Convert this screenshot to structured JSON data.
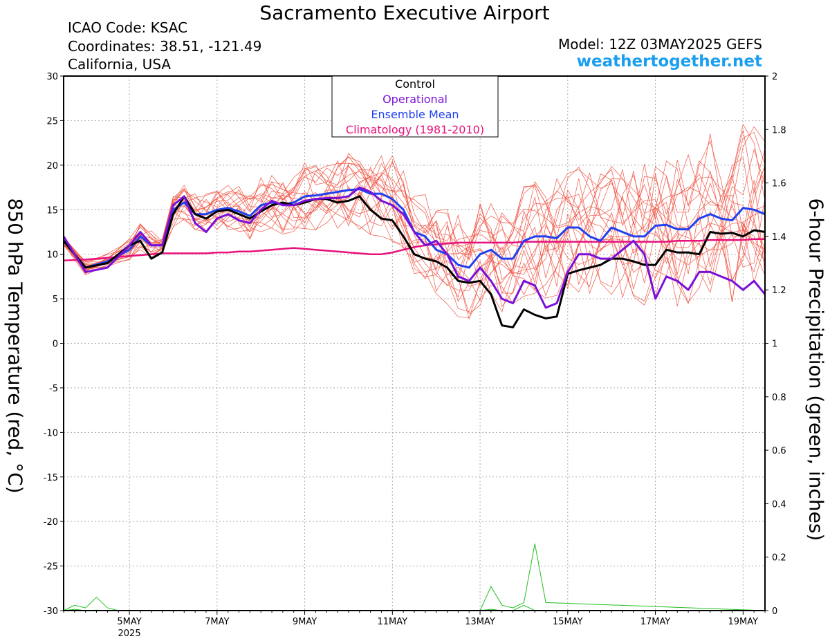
{
  "header": {
    "title": "Sacramento Executive Airport",
    "icao": "ICAO Code: KSAC",
    "coordinates": "Coordinates: 38.51, -121.49",
    "location": "California, USA",
    "model": "Model: 12Z 03MAY2025 GEFS",
    "site": "weathertogether.net"
  },
  "colors": {
    "members": "#f05040",
    "control": "#000000",
    "operational": "#7a10d8",
    "mean": "#2040f0",
    "climatology": "#e8107a",
    "precip": "#20c020",
    "site": "#1a9ef0",
    "grid": "#aaaaaa"
  },
  "chart_data": {
    "type": "line",
    "title": "Sacramento Executive Airport",
    "ylabel": "850 hPa Temperature (red, °C)",
    "y2label": "6-hour Precipitation (green, inches)",
    "ylim": [
      -30,
      30
    ],
    "y2lim": [
      0,
      2
    ],
    "yticks": [
      "30",
      "25",
      "20",
      "15",
      "10",
      "5",
      "0",
      "-5",
      "-10",
      "-15",
      "-20",
      "-25",
      "-30"
    ],
    "y2ticks": [
      "2",
      "1.8",
      "1.6",
      "1.4",
      "1.2",
      "1",
      "0.8",
      "0.6",
      "0.4",
      "0.2",
      "0"
    ],
    "xlim_days": [
      3.5,
      19.5
    ],
    "xticks": [
      {
        "label": "5MAY",
        "sub": "2025",
        "day": 5
      },
      {
        "label": "7MAY",
        "sub": "",
        "day": 7
      },
      {
        "label": "9MAY",
        "sub": "",
        "day": 9
      },
      {
        "label": "11MAY",
        "sub": "",
        "day": 11
      },
      {
        "label": "13MAY",
        "sub": "",
        "day": 13
      },
      {
        "label": "15MAY",
        "sub": "",
        "day": 15
      },
      {
        "label": "17MAY",
        "sub": "",
        "day": 17
      },
      {
        "label": "19MAY",
        "sub": "",
        "day": 19
      }
    ],
    "grid": true,
    "legend_position": "top-center",
    "legend": [
      {
        "label": "Control",
        "color": "#000000"
      },
      {
        "label": "Operational",
        "color": "#7a10d8"
      },
      {
        "label": "Ensemble Mean",
        "color": "#2040f0"
      },
      {
        "label": "Climatology (1981-2010)",
        "color": "#e8107a"
      }
    ],
    "x_day": [
      3.5,
      4.0,
      4.5,
      5.0,
      5.25,
      5.5,
      5.75,
      6.0,
      6.25,
      6.5,
      6.75,
      7.0,
      7.25,
      7.5,
      7.75,
      8.0,
      8.25,
      8.5,
      8.75,
      9.0,
      9.25,
      9.5,
      9.75,
      10.0,
      10.25,
      10.5,
      10.75,
      11.0,
      11.25,
      11.5,
      11.75,
      12.0,
      12.25,
      12.5,
      12.75,
      13.0,
      13.25,
      13.5,
      13.75,
      14.0,
      14.25,
      14.5,
      14.75,
      15.0,
      15.25,
      15.5,
      15.75,
      16.0,
      16.25,
      16.5,
      16.75,
      17.0,
      17.25,
      17.5,
      17.75,
      18.0,
      18.25,
      18.5,
      18.75,
      19.0,
      19.25,
      19.5
    ],
    "series": [
      {
        "name": "Control",
        "values": [
          11.5,
          8.5,
          9.0,
          11.0,
          11.5,
          9.5,
          10.2,
          14.5,
          16.5,
          14.5,
          14.0,
          14.8,
          15.0,
          14.5,
          14.0,
          14.8,
          15.5,
          15.8,
          15.5,
          15.8,
          16.2,
          16.2,
          15.8,
          16.0,
          16.5,
          15.0,
          14.0,
          13.8,
          12.0,
          10.0,
          9.5,
          9.2,
          8.5,
          7.0,
          6.8,
          7.0,
          5.5,
          2.0,
          1.8,
          3.8,
          3.2,
          2.8,
          3.0,
          7.8,
          8.2,
          8.5,
          8.8,
          9.5,
          9.5,
          9.2,
          8.8,
          8.8,
          10.5,
          10.2,
          10.2,
          10.0,
          12.5,
          12.3,
          12.4,
          12.0,
          12.7,
          12.5
        ]
      },
      {
        "name": "Operational",
        "values": [
          12.0,
          8.0,
          8.5,
          11.0,
          12.5,
          11.0,
          11.0,
          15.5,
          16.5,
          13.5,
          12.5,
          14.0,
          14.5,
          13.8,
          13.5,
          15.0,
          16.0,
          15.5,
          15.5,
          16.0,
          16.2,
          16.3,
          16.3,
          16.5,
          17.5,
          17.0,
          16.0,
          15.5,
          14.5,
          12.5,
          11.0,
          11.5,
          10.0,
          7.5,
          7.0,
          8.5,
          7.0,
          5.0,
          4.5,
          7.0,
          6.5,
          4.0,
          4.5,
          8.0,
          10.0,
          10.0,
          9.5,
          9.5,
          10.5,
          11.5,
          10.0,
          5.0,
          7.5,
          7.0,
          6.0,
          8.0,
          8.0,
          7.5,
          7.0,
          6.0,
          7.0,
          5.5
        ]
      },
      {
        "name": "Ensemble Mean",
        "values": [
          11.5,
          8.5,
          9.2,
          10.5,
          12.0,
          11.0,
          11.0,
          15.0,
          15.8,
          14.5,
          14.5,
          15.0,
          15.2,
          14.8,
          14.3,
          15.5,
          15.8,
          15.6,
          15.8,
          16.5,
          16.6,
          16.8,
          17.0,
          17.2,
          17.3,
          16.8,
          16.8,
          16.2,
          15.0,
          12.5,
          12.0,
          10.5,
          10.0,
          8.8,
          8.5,
          10.0,
          10.5,
          9.5,
          9.5,
          11.5,
          12.0,
          12.0,
          11.8,
          13.0,
          13.0,
          12.0,
          11.5,
          13.0,
          12.5,
          12.0,
          12.0,
          13.2,
          13.3,
          12.8,
          12.8,
          14.0,
          14.5,
          14.0,
          13.8,
          15.2,
          15.0,
          14.5
        ]
      },
      {
        "name": "Climatology (1981-2010)",
        "values": [
          9.3,
          9.4,
          9.6,
          9.8,
          9.9,
          10.0,
          10.1,
          10.1,
          10.1,
          10.1,
          10.1,
          10.2,
          10.2,
          10.3,
          10.3,
          10.4,
          10.5,
          10.6,
          10.7,
          10.6,
          10.5,
          10.4,
          10.3,
          10.2,
          10.1,
          10.0,
          10.0,
          10.2,
          10.5,
          10.8,
          11.0,
          11.1,
          11.2,
          11.3,
          11.3,
          11.3,
          11.3,
          11.3,
          11.3,
          11.4,
          11.4,
          11.4,
          11.4,
          11.4,
          11.4,
          11.4,
          11.4,
          11.4,
          11.4,
          11.4,
          11.4,
          11.4,
          11.4,
          11.5,
          11.5,
          11.5,
          11.6,
          11.6,
          11.6,
          11.6,
          11.7,
          11.7
        ]
      }
    ],
    "precip_series": [
      {
        "x_day": [
          3.5,
          3.75,
          4.0,
          4.25,
          4.5,
          4.75,
          5.0,
          5.25,
          5.5,
          13.0,
          13.25,
          13.5,
          13.75,
          14.0,
          14.25,
          14.5,
          15.0,
          19.5
        ],
        "values": [
          0,
          0.005,
          0,
          0.002,
          0,
          0,
          0,
          0,
          0,
          0,
          0.005,
          0,
          0,
          0.02,
          0,
          0,
          0,
          0
        ]
      },
      {
        "x_day": [
          3.5,
          3.75,
          4.0,
          4.25,
          4.5,
          4.75,
          5.0,
          13.0,
          13.25,
          13.5,
          13.75,
          14.0,
          14.25,
          14.5,
          19.5
        ],
        "values": [
          0,
          0.02,
          0.01,
          0.05,
          0.01,
          0,
          0,
          0,
          0.09,
          0.02,
          0.01,
          0.03,
          0.25,
          0.03,
          0
        ]
      }
    ]
  }
}
